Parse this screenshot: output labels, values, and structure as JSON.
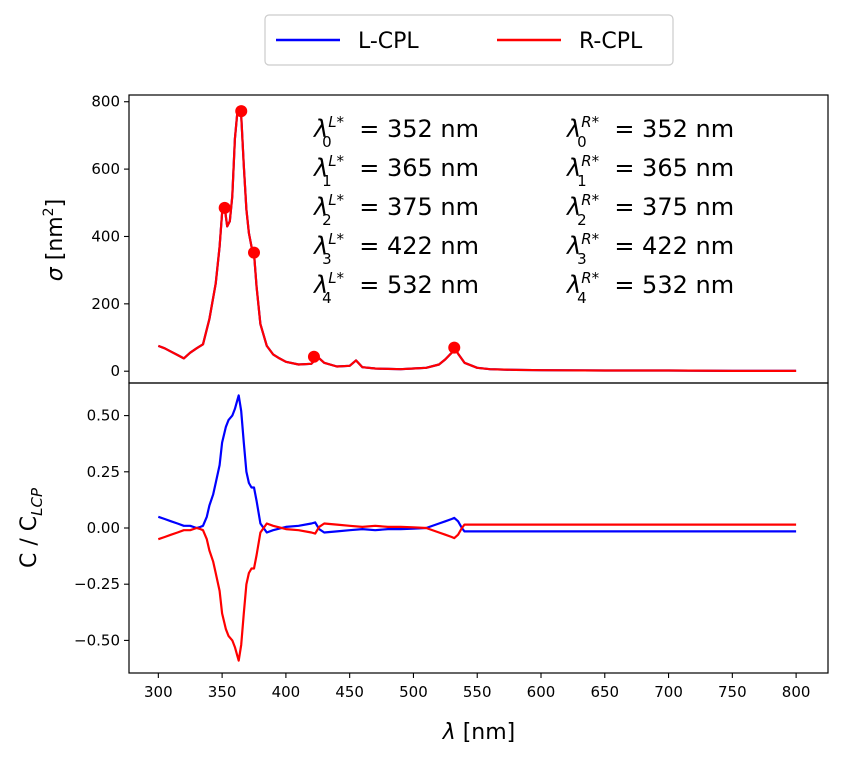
{
  "legend": {
    "entries": [
      {
        "name": "L-CPL",
        "color": "#0000ff"
      },
      {
        "name": "R-CPL",
        "color": "#ff0000"
      }
    ],
    "placement": "top-center"
  },
  "annotations": {
    "left": [
      {
        "sym": "λ",
        "sub": "0",
        "sup": "L*",
        "text": "= 352 nm"
      },
      {
        "sym": "λ",
        "sub": "1",
        "sup": "L*",
        "text": "= 365 nm"
      },
      {
        "sym": "λ",
        "sub": "2",
        "sup": "L*",
        "text": "= 375 nm"
      },
      {
        "sym": "λ",
        "sub": "3",
        "sup": "L*",
        "text": "= 422 nm"
      },
      {
        "sym": "λ",
        "sub": "4",
        "sup": "L*",
        "text": "= 532 nm"
      }
    ],
    "right": [
      {
        "sym": "λ",
        "sub": "0",
        "sup": "R*",
        "text": "= 352 nm"
      },
      {
        "sym": "λ",
        "sub": "1",
        "sup": "R*",
        "text": "= 365 nm"
      },
      {
        "sym": "λ",
        "sub": "2",
        "sup": "R*",
        "text": "= 375 nm"
      },
      {
        "sym": "λ",
        "sub": "3",
        "sup": "R*",
        "text": "= 422 nm"
      },
      {
        "sym": "λ",
        "sub": "4",
        "sup": "R*",
        "text": "= 532 nm"
      }
    ]
  },
  "chart_data": [
    {
      "type": "line",
      "ylabel": "σ [nm²]",
      "ylabel_parts": {
        "sym": "σ",
        "base": " [nm",
        "sup": "2",
        "end": "]"
      },
      "xlim": [
        277,
        825
      ],
      "ylim": [
        -35,
        820
      ],
      "yticks": [
        0,
        200,
        400,
        600,
        800
      ],
      "series": [
        {
          "name": "L-CPL",
          "color": "#0000ff",
          "x": [
            300,
            305,
            310,
            315,
            320,
            325,
            330,
            335,
            340,
            345,
            348,
            350,
            352,
            354,
            356,
            358,
            360,
            362,
            365,
            367,
            369,
            371,
            373,
            375,
            377,
            380,
            385,
            390,
            395,
            400,
            410,
            420,
            425,
            430,
            440,
            450,
            455,
            460,
            470,
            480,
            490,
            500,
            510,
            520,
            525,
            530,
            532,
            535,
            540,
            550,
            560,
            580,
            600,
            650,
            700,
            750,
            800
          ],
          "y": [
            75,
            68,
            58,
            48,
            38,
            55,
            68,
            80,
            155,
            260,
            370,
            470,
            485,
            430,
            445,
            520,
            690,
            770,
            760,
            610,
            480,
            410,
            370,
            350,
            250,
            140,
            75,
            50,
            38,
            28,
            20,
            22,
            42,
            25,
            14,
            16,
            32,
            12,
            8,
            7,
            6,
            8,
            10,
            20,
            35,
            55,
            70,
            52,
            25,
            10,
            6,
            4,
            3,
            2,
            2,
            1,
            1
          ]
        },
        {
          "name": "R-CPL",
          "color": "#ff0000",
          "x": [
            300,
            305,
            310,
            315,
            320,
            325,
            330,
            335,
            340,
            345,
            348,
            350,
            352,
            354,
            356,
            358,
            360,
            362,
            365,
            367,
            369,
            371,
            373,
            375,
            377,
            380,
            385,
            390,
            395,
            400,
            410,
            420,
            425,
            430,
            440,
            450,
            455,
            460,
            470,
            480,
            490,
            500,
            510,
            520,
            525,
            530,
            532,
            535,
            540,
            550,
            560,
            580,
            600,
            650,
            700,
            750,
            800
          ],
          "y": [
            75,
            68,
            58,
            48,
            38,
            55,
            68,
            80,
            155,
            260,
            370,
            470,
            485,
            430,
            445,
            520,
            690,
            770,
            760,
            610,
            480,
            410,
            370,
            350,
            250,
            140,
            75,
            50,
            38,
            28,
            20,
            22,
            42,
            25,
            14,
            16,
            32,
            12,
            8,
            7,
            6,
            8,
            10,
            20,
            35,
            55,
            70,
            52,
            25,
            10,
            6,
            4,
            3,
            2,
            2,
            1,
            1
          ]
        }
      ],
      "markers": {
        "x": [
          352,
          365,
          375,
          422,
          532
        ],
        "y": [
          485,
          772,
          352,
          43,
          70
        ],
        "color": "#ff0000"
      }
    },
    {
      "type": "line",
      "xlabel": "λ [nm]",
      "xlabel_parts": {
        "sym": "λ",
        "rest": " [nm]"
      },
      "ylabel": "C / C_LCP",
      "ylabel_parts": {
        "base": "C / C",
        "sub": "LCP"
      },
      "xlim": [
        277,
        825
      ],
      "ylim": [
        -0.645,
        0.645
      ],
      "xticks": [
        300,
        350,
        400,
        450,
        500,
        550,
        600,
        650,
        700,
        750,
        800
      ],
      "yticks": [
        -0.5,
        -0.25,
        0.0,
        0.25,
        0.5
      ],
      "ytick_labels": [
        "−0.50",
        "−0.25",
        "0.00",
        "0.25",
        "0.50"
      ],
      "series": [
        {
          "name": "L-CPL",
          "color": "#0000ff",
          "x": [
            300,
            305,
            310,
            315,
            320,
            325,
            330,
            333,
            335,
            338,
            340,
            343,
            345,
            348,
            350,
            353,
            355,
            358,
            360,
            362,
            363,
            365,
            367,
            369,
            371,
            373,
            375,
            377,
            380,
            385,
            390,
            400,
            410,
            420,
            423,
            426,
            430,
            440,
            450,
            460,
            470,
            480,
            490,
            500,
            510,
            520,
            525,
            530,
            532,
            535,
            538,
            540,
            550,
            560,
            600,
            650,
            700,
            750,
            800
          ],
          "y": [
            0.05,
            0.04,
            0.03,
            0.02,
            0.01,
            0.01,
            0.0,
            0.005,
            0.01,
            0.05,
            0.1,
            0.15,
            0.2,
            0.28,
            0.38,
            0.45,
            0.48,
            0.5,
            0.53,
            0.57,
            0.59,
            0.52,
            0.38,
            0.25,
            0.2,
            0.18,
            0.18,
            0.12,
            0.02,
            -0.02,
            -0.01,
            0.005,
            0.01,
            0.02,
            0.025,
            -0.005,
            -0.02,
            -0.015,
            -0.01,
            -0.005,
            -0.01,
            -0.005,
            -0.005,
            -0.003,
            0.0,
            0.02,
            0.03,
            0.04,
            0.045,
            0.03,
            0.0,
            -0.015,
            -0.015,
            -0.015,
            -0.015,
            -0.015,
            -0.015,
            -0.015,
            -0.015
          ]
        },
        {
          "name": "R-CPL",
          "color": "#ff0000",
          "x": [
            300,
            305,
            310,
            315,
            320,
            325,
            330,
            333,
            335,
            338,
            340,
            343,
            345,
            348,
            350,
            353,
            355,
            358,
            360,
            362,
            363,
            365,
            367,
            369,
            371,
            373,
            375,
            377,
            380,
            385,
            390,
            400,
            410,
            420,
            423,
            426,
            430,
            440,
            450,
            460,
            470,
            480,
            490,
            500,
            510,
            520,
            525,
            530,
            532,
            535,
            538,
            540,
            550,
            560,
            600,
            650,
            700,
            750,
            800
          ],
          "y": [
            -0.05,
            -0.04,
            -0.03,
            -0.02,
            -0.01,
            -0.01,
            0.0,
            -0.005,
            -0.01,
            -0.05,
            -0.1,
            -0.15,
            -0.2,
            -0.28,
            -0.38,
            -0.45,
            -0.48,
            -0.5,
            -0.53,
            -0.57,
            -0.59,
            -0.52,
            -0.38,
            -0.25,
            -0.2,
            -0.18,
            -0.18,
            -0.12,
            -0.02,
            0.02,
            0.01,
            -0.005,
            -0.01,
            -0.02,
            -0.025,
            0.005,
            0.02,
            0.015,
            0.01,
            0.005,
            0.01,
            0.005,
            0.005,
            0.003,
            0.0,
            -0.02,
            -0.03,
            -0.04,
            -0.045,
            -0.03,
            0.0,
            0.015,
            0.015,
            0.015,
            0.015,
            0.015,
            0.015,
            0.015,
            0.015
          ]
        }
      ]
    }
  ]
}
